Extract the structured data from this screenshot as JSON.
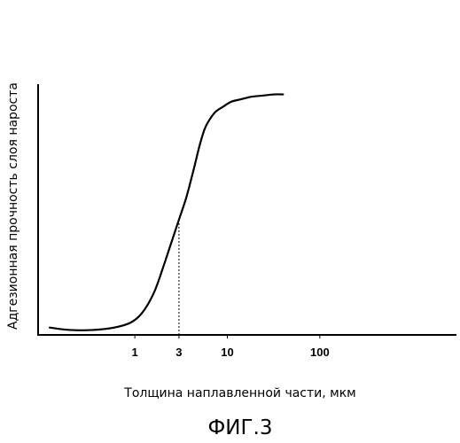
{
  "chart_data": {
    "type": "line",
    "x_scale": "log",
    "xlabel": "Толщина наплавленной части, мкм",
    "ylabel": "Адгезионная прочность слоя нароста",
    "x_ticks": [
      {
        "value": 1,
        "label": "1"
      },
      {
        "value": 3,
        "label": "3"
      },
      {
        "value": 10,
        "label": "10"
      },
      {
        "value": 100,
        "label": "100"
      }
    ],
    "xlim": [
      0.09,
      3000
    ],
    "ylim": [
      0,
      1
    ],
    "grid": false,
    "series": [
      {
        "x": [
          0.12,
          0.2,
          0.35,
          0.6,
          0.9,
          1.2,
          1.6,
          2.0,
          2.5,
          3.0,
          3.6,
          4.3,
          5.0,
          5.7,
          6.5,
          7.5,
          9,
          11,
          14,
          18,
          24,
          32,
          40
        ],
        "y": [
          0.03,
          0.02,
          0.02,
          0.03,
          0.05,
          0.09,
          0.17,
          0.27,
          0.38,
          0.47,
          0.56,
          0.67,
          0.77,
          0.84,
          0.88,
          0.91,
          0.93,
          0.95,
          0.96,
          0.97,
          0.975,
          0.98,
          0.98
        ]
      }
    ],
    "reference_line": {
      "x": 3,
      "style": "dashed"
    }
  },
  "caption": "ФИГ.3"
}
